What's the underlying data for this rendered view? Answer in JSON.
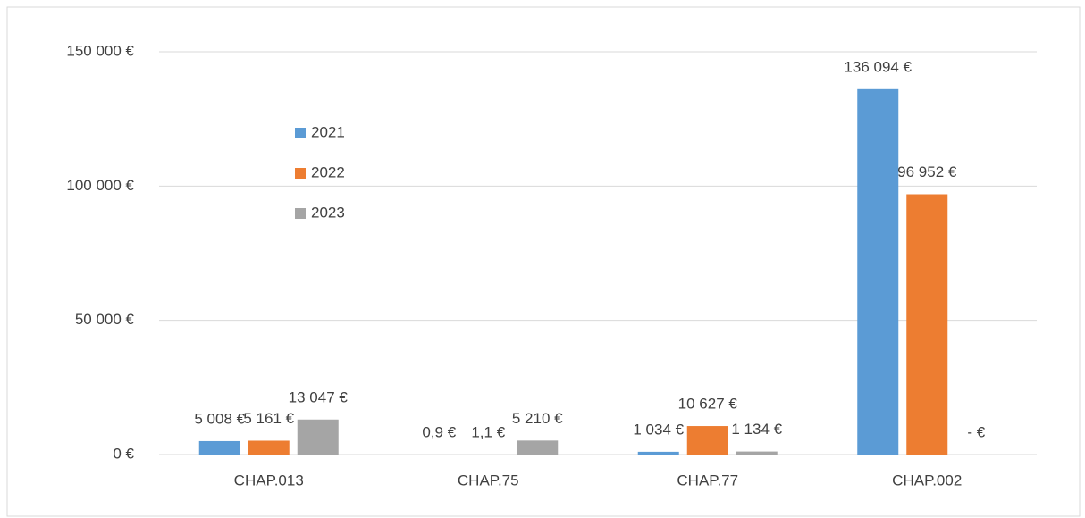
{
  "chart_data": {
    "type": "bar",
    "categories": [
      "CHAP.013",
      "CHAP.75",
      "CHAP.77",
      "CHAP.002"
    ],
    "series": [
      {
        "name": "2021",
        "color": "#5b9bd5",
        "values": [
          5008,
          0.9,
          1034,
          136094
        ],
        "value_labels": [
          "5 008 €",
          "0,9 €",
          "1 034 €",
          "136 094 €"
        ]
      },
      {
        "name": "2022",
        "color": "#ed7d31",
        "values": [
          5161,
          1.1,
          10627,
          96952
        ],
        "value_labels": [
          "5 161 €",
          "1,1 €",
          "10 627 €",
          "96 952 €"
        ]
      },
      {
        "name": "2023",
        "color": "#a5a5a5",
        "values": [
          13047,
          5210,
          1134,
          0
        ],
        "value_labels": [
          "13 047 €",
          "5 210 €",
          "1 134 €",
          "-   €"
        ]
      }
    ],
    "ylim": [
      0,
      150000
    ],
    "yticks": [
      {
        "value": 0,
        "label": "0 €"
      },
      {
        "value": 50000,
        "label": "50 000 €"
      },
      {
        "value": 100000,
        "label": "100 000 €"
      },
      {
        "value": 150000,
        "label": "150 000 €"
      }
    ],
    "grid": true,
    "legend": "left"
  }
}
